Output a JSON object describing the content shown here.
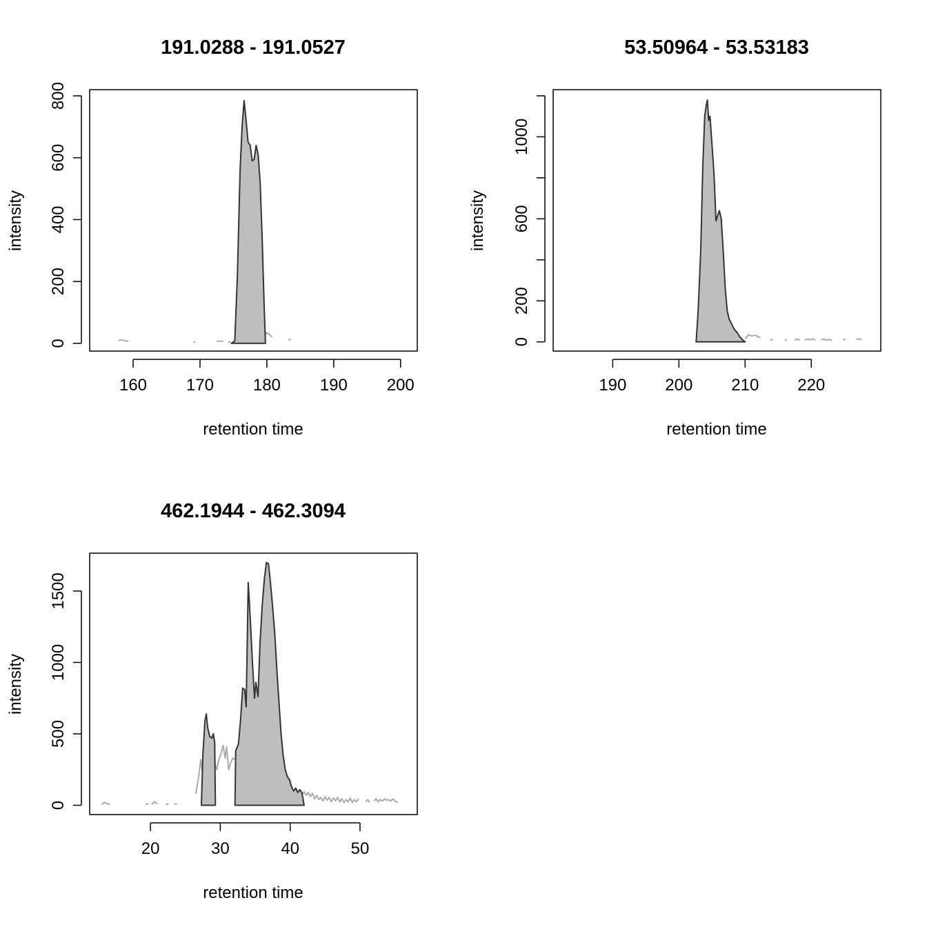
{
  "chart_data": [
    {
      "type": "area",
      "title": "191.0288 - 191.0527",
      "xlabel": "retention time",
      "ylabel": "intensity",
      "xlim": [
        153.5,
        202.5
      ],
      "ylim": [
        -25,
        820
      ],
      "xticks": [
        160,
        170,
        180,
        190,
        200
      ],
      "xtick_labels": [
        "160",
        "170",
        "180",
        "190",
        "200"
      ],
      "yticks": [
        0,
        200,
        400,
        600,
        800
      ],
      "ytick_labels": [
        "0",
        "200",
        "400",
        "600",
        "800"
      ],
      "grid": false,
      "legend": "none",
      "series": [
        {
          "role": "raw signal (outside peak)",
          "color": "#a9a9a9",
          "segments": [
            [
              [
                157.8,
                9
              ],
              [
                158.3,
                11
              ],
              [
                158.8,
                8
              ],
              [
                159.3,
                7
              ]
            ],
            [
              [
                169.0,
                3
              ],
              [
                169.3,
                5
              ]
            ],
            [
              [
                172.5,
                6
              ],
              [
                173.0,
                8
              ],
              [
                173.5,
                5
              ]
            ],
            [
              [
                174.2,
                3
              ],
              [
                174.6,
                5
              ]
            ],
            [
              [
                179.6,
                22
              ],
              [
                180.0,
                35
              ],
              [
                180.4,
                28
              ],
              [
                180.8,
                20
              ]
            ],
            [
              [
                183.2,
                10
              ],
              [
                183.6,
                14
              ]
            ]
          ]
        },
        {
          "role": "integrated peak",
          "color": "#333333",
          "fill": "#bebebe",
          "points": [
            [
              174.7,
              0
            ],
            [
              175.2,
              8
            ],
            [
              175.6,
              220
            ],
            [
              176.0,
              560
            ],
            [
              176.3,
              700
            ],
            [
              176.6,
              785
            ],
            [
              176.9,
              720
            ],
            [
              177.2,
              650
            ],
            [
              177.5,
              640
            ],
            [
              177.8,
              590
            ],
            [
              178.1,
              595
            ],
            [
              178.4,
              640
            ],
            [
              178.7,
              610
            ],
            [
              179.0,
              520
            ],
            [
              179.3,
              340
            ],
            [
              179.6,
              120
            ],
            [
              179.8,
              0
            ]
          ]
        }
      ]
    },
    {
      "type": "area",
      "title": "53.50964 - 53.53183",
      "xlabel": "retention time",
      "ylabel": "intensity",
      "xlim": [
        181.0,
        230.5
      ],
      "ylim": [
        -45,
        1230
      ],
      "xticks": [
        190,
        200,
        210,
        220
      ],
      "xtick_labels": [
        "190",
        "200",
        "210",
        "220"
      ],
      "yticks": [
        0,
        200,
        400,
        600,
        800,
        1000,
        1200
      ],
      "ytick_labels": [
        "0",
        "200",
        "",
        "600",
        "",
        "1000",
        ""
      ],
      "grid": false,
      "legend": "none",
      "series": [
        {
          "role": "raw signal (outside peak)",
          "color": "#a9a9a9",
          "segments": [
            [
              [
                210.0,
                15
              ],
              [
                210.5,
                35
              ],
              [
                211.0,
                28
              ],
              [
                211.5,
                32
              ],
              [
                212.0,
                25
              ],
              [
                212.3,
                20
              ]
            ],
            [
              [
                213.8,
                8
              ],
              [
                214.2,
                12
              ]
            ],
            [
              [
                216.0,
                7
              ],
              [
                216.3,
                10
              ]
            ],
            [
              [
                217.5,
                8
              ],
              [
                217.9,
                13
              ],
              [
                218.3,
                9
              ]
            ],
            [
              [
                219.0,
                6
              ],
              [
                219.4,
                14
              ],
              [
                219.8,
                10
              ],
              [
                220.2,
                15
              ],
              [
                220.6,
                8
              ]
            ],
            [
              [
                221.5,
                9
              ],
              [
                221.9,
                14
              ],
              [
                222.3,
                8
              ],
              [
                222.7,
                12
              ],
              [
                223.1,
                7
              ]
            ],
            [
              [
                224.8,
                10
              ],
              [
                225.2,
                13
              ]
            ],
            [
              [
                226.8,
                12
              ],
              [
                227.2,
                15
              ],
              [
                227.6,
                10
              ]
            ]
          ]
        },
        {
          "role": "integrated peak",
          "color": "#333333",
          "fill": "#bebebe",
          "points": [
            [
              202.6,
              0
            ],
            [
              202.9,
              150
            ],
            [
              203.3,
              450
            ],
            [
              203.6,
              850
            ],
            [
              203.9,
              1100
            ],
            [
              204.1,
              1150
            ],
            [
              204.3,
              1180
            ],
            [
              204.5,
              1080
            ],
            [
              204.7,
              1100
            ],
            [
              205.0,
              960
            ],
            [
              205.3,
              820
            ],
            [
              205.6,
              590
            ],
            [
              205.9,
              620
            ],
            [
              206.1,
              640
            ],
            [
              206.4,
              600
            ],
            [
              206.7,
              440
            ],
            [
              207.0,
              260
            ],
            [
              207.3,
              150
            ],
            [
              207.6,
              110
            ],
            [
              208.0,
              85
            ],
            [
              208.4,
              60
            ],
            [
              208.8,
              45
            ],
            [
              209.2,
              25
            ],
            [
              209.6,
              10
            ],
            [
              210.0,
              0
            ]
          ]
        }
      ]
    },
    {
      "type": "area",
      "title": "462.1944 - 462.3094",
      "xlabel": "retention time",
      "ylabel": "intensity",
      "xlim": [
        11.3,
        58.2
      ],
      "ylim": [
        -65,
        1765
      ],
      "xticks": [
        20,
        30,
        40,
        50
      ],
      "xtick_labels": [
        "20",
        "30",
        "40",
        "50"
      ],
      "yticks": [
        0,
        500,
        1000,
        1500
      ],
      "ytick_labels": [
        "0",
        "500",
        "1000",
        "1500"
      ],
      "grid": false,
      "legend": "none",
      "series": [
        {
          "role": "raw signal (outside peak)",
          "color": "#a9a9a9",
          "segments": [
            [
              [
                13.0,
                5
              ],
              [
                13.4,
                20
              ],
              [
                13.8,
                10
              ],
              [
                14.2,
                8
              ]
            ],
            [
              [
                19.3,
                5
              ],
              [
                19.7,
                12
              ]
            ],
            [
              [
                20.2,
                8
              ],
              [
                20.6,
                25
              ],
              [
                21.0,
                10
              ]
            ],
            [
              [
                22.2,
                5
              ],
              [
                22.6,
                10
              ]
            ],
            [
              [
                23.4,
                6
              ],
              [
                23.8,
                12
              ]
            ],
            [
              [
                26.5,
                80
              ],
              [
                26.9,
                200
              ],
              [
                27.2,
                320
              ],
              [
                27.5,
                200
              ],
              [
                27.8,
                160
              ]
            ],
            [
              [
                29.2,
                300
              ],
              [
                29.5,
                250
              ],
              [
                29.8,
                320
              ],
              [
                30.1,
                360
              ],
              [
                30.4,
                420
              ],
              [
                30.7,
                330
              ],
              [
                30.9,
                410
              ],
              [
                31.2,
                250
              ],
              [
                31.5,
                300
              ],
              [
                31.8,
                330
              ],
              [
                32.1,
                320
              ]
            ],
            [
              [
                41.7,
                75
              ],
              [
                42.0,
                95
              ],
              [
                42.3,
                70
              ],
              [
                42.6,
                90
              ],
              [
                42.9,
                60
              ],
              [
                43.2,
                85
              ],
              [
                43.5,
                45
              ],
              [
                43.8,
                70
              ],
              [
                44.1,
                40
              ],
              [
                44.4,
                55
              ],
              [
                44.7,
                30
              ],
              [
                45.0,
                60
              ],
              [
                45.3,
                35
              ],
              [
                45.6,
                55
              ],
              [
                45.9,
                25
              ],
              [
                46.2,
                50
              ],
              [
                46.5,
                30
              ],
              [
                46.8,
                55
              ],
              [
                47.1,
                25
              ],
              [
                47.4,
                45
              ],
              [
                47.7,
                20
              ],
              [
                48.0,
                40
              ],
              [
                48.3,
                25
              ],
              [
                48.6,
                50
              ],
              [
                48.9,
                20
              ],
              [
                49.2,
                40
              ],
              [
                49.5,
                25
              ],
              [
                49.8,
                45
              ]
            ],
            [
              [
                50.8,
                25
              ],
              [
                51.1,
                40
              ],
              [
                51.4,
                20
              ]
            ],
            [
              [
                52.0,
                30
              ],
              [
                52.3,
                45
              ],
              [
                52.6,
                25
              ],
              [
                52.9,
                40
              ],
              [
                53.2,
                30
              ],
              [
                53.5,
                45
              ],
              [
                53.8,
                35
              ],
              [
                54.1,
                40
              ],
              [
                54.4,
                30
              ],
              [
                54.7,
                45
              ],
              [
                55.0,
                30
              ],
              [
                55.4,
                20
              ]
            ]
          ]
        },
        {
          "role": "integrated peak",
          "color": "#333333",
          "fill": "#bebebe",
          "points": [
            [
              27.3,
              0
            ],
            [
              27.5,
              350
            ],
            [
              27.8,
              590
            ],
            [
              28.0,
              640
            ],
            [
              28.2,
              540
            ],
            [
              28.5,
              480
            ],
            [
              28.8,
              470
            ],
            [
              29.0,
              500
            ],
            [
              29.2,
              440
            ],
            [
              29.3,
              0
            ]
          ]
        },
        {
          "role": "integrated peak",
          "color": "#333333",
          "fill": "#bebebe",
          "points": [
            [
              32.1,
              0
            ],
            [
              32.2,
              380
            ],
            [
              32.6,
              430
            ],
            [
              32.9,
              600
            ],
            [
              33.2,
              820
            ],
            [
              33.5,
              810
            ],
            [
              33.7,
              690
            ],
            [
              34.0,
              1560
            ],
            [
              34.3,
              1300
            ],
            [
              34.6,
              1000
            ],
            [
              34.9,
              750
            ],
            [
              35.1,
              860
            ],
            [
              35.4,
              760
            ],
            [
              35.7,
              1150
            ],
            [
              36.0,
              1400
            ],
            [
              36.3,
              1580
            ],
            [
              36.6,
              1700
            ],
            [
              36.9,
              1690
            ],
            [
              37.2,
              1550
            ],
            [
              37.5,
              1380
            ],
            [
              37.8,
              1200
            ],
            [
              38.1,
              950
            ],
            [
              38.4,
              720
            ],
            [
              38.7,
              500
            ],
            [
              39.0,
              350
            ],
            [
              39.3,
              250
            ],
            [
              39.6,
              200
            ],
            [
              39.9,
              180
            ],
            [
              40.2,
              130
            ],
            [
              40.5,
              100
            ],
            [
              40.8,
              120
            ],
            [
              41.1,
              90
            ],
            [
              41.4,
              110
            ],
            [
              41.7,
              85
            ],
            [
              42.0,
              0
            ]
          ]
        }
      ]
    }
  ]
}
